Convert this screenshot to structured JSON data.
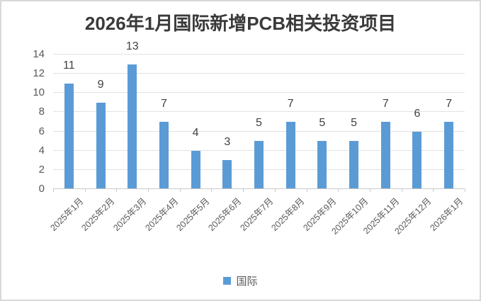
{
  "chart_data": {
    "type": "bar",
    "title": "2026年1月国际新增PCB相关投资项目",
    "categories": [
      "2025年1月",
      "2025年2月",
      "2025年3月",
      "2025年4月",
      "2025年5月",
      "2025年6月",
      "2025年7月",
      "2025年8月",
      "2025年9月",
      "2025年10月",
      "2025年11月",
      "2025年12月",
      "2026年1月"
    ],
    "series": [
      {
        "name": "国际",
        "values": [
          11,
          9,
          13,
          7,
          4,
          3,
          5,
          7,
          5,
          5,
          7,
          6,
          7
        ]
      }
    ],
    "data_labels_shown": true,
    "xlabel": "",
    "ylabel": "",
    "ylim": [
      0,
      14
    ],
    "yticks": [
      0,
      2,
      4,
      6,
      8,
      10,
      12,
      14
    ],
    "grid": true,
    "legend_position": "bottom",
    "x_tick_rotation_deg": 45,
    "colors": {
      "bar": "#5b9bd5",
      "title_text": "#3a3a3a",
      "axis_text": "#595959",
      "data_label_text": "#404040",
      "gridline": "#e2e2e2",
      "axis_line": "#c9c9c9",
      "frame_border": "#d8d8d8",
      "background": "#ffffff"
    }
  }
}
